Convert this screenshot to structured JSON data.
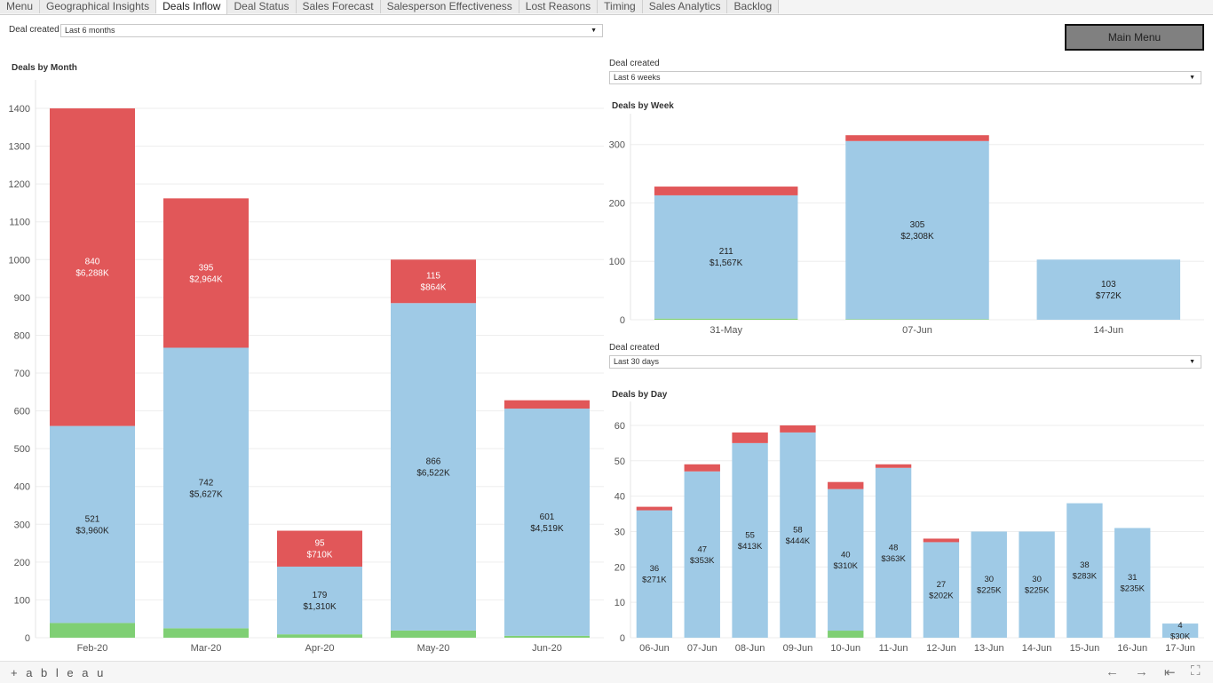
{
  "tabs": [
    "Menu",
    "Geographical Insights",
    "Deals Inflow",
    "Deal Status",
    "Sales Forecast",
    "Salesperson Effectiveness",
    "Lost Reasons",
    "Timing",
    "Sales Analytics",
    "Backlog"
  ],
  "active_tab": "Deals Inflow",
  "main_menu_label": "Main Menu",
  "filters": {
    "month": {
      "label": "Deal created",
      "value": "Last 6 months"
    },
    "week": {
      "label": "Deal created",
      "value": "Last 6 weeks"
    },
    "day": {
      "label": "Deal created",
      "value": "Last 30 days"
    }
  },
  "colors": {
    "open": "#9fcae6",
    "lost": "#e15759",
    "won": "#7fcf74",
    "grid": "#eeeeee",
    "axis": "#555555"
  },
  "footer": {
    "logo": "+ a b l e a u",
    "nav_icons": [
      "arrow-left-icon",
      "arrow-right-icon",
      "first-page-icon",
      "fullscreen-icon"
    ]
  },
  "chart_data": [
    {
      "type": "bar",
      "title": "Deals by Month",
      "stacked": true,
      "categories": [
        "Feb-20",
        "Mar-20",
        "Apr-20",
        "May-20",
        "Jun-20"
      ],
      "yticks": [
        0,
        100,
        200,
        300,
        400,
        500,
        600,
        700,
        800,
        900,
        1000,
        1100,
        1200,
        1300,
        1400
      ],
      "ylim": [
        0,
        1440
      ],
      "series": [
        {
          "key": "won",
          "values": [
            39,
            25,
            9,
            19,
            5
          ]
        },
        {
          "key": "open",
          "values": [
            521,
            742,
            179,
            866,
            601
          ],
          "labels": [
            "521\n$3,960K",
            "742\n$5,627K",
            "179\n$1,310K",
            "866\n$6,522K",
            "601\n$4,519K"
          ]
        },
        {
          "key": "lost",
          "values": [
            840,
            395,
            95,
            115,
            22
          ],
          "labels": [
            "840\n$6,288K",
            "395\n$2,964K",
            "95\n$710K",
            "115\n$864K",
            ""
          ]
        }
      ]
    },
    {
      "type": "bar",
      "title": "Deals by Week",
      "stacked": true,
      "categories": [
        "31-May",
        "07-Jun",
        "14-Jun"
      ],
      "yticks": [
        0,
        100,
        200,
        300
      ],
      "ylim": [
        0,
        330
      ],
      "series": [
        {
          "key": "won",
          "values": [
            2,
            1,
            0
          ]
        },
        {
          "key": "open",
          "values": [
            211,
            305,
            103
          ],
          "labels": [
            "211\n$1,567K",
            "305\n$2,308K",
            "103\n$772K"
          ]
        },
        {
          "key": "lost",
          "values": [
            15,
            10,
            0
          ],
          "labels": [
            "",
            "",
            ""
          ]
        }
      ]
    },
    {
      "type": "bar",
      "title": "Deals by Day",
      "stacked": true,
      "categories": [
        "06-Jun",
        "07-Jun",
        "08-Jun",
        "09-Jun",
        "10-Jun",
        "11-Jun",
        "12-Jun",
        "13-Jun",
        "14-Jun",
        "15-Jun",
        "16-Jun",
        "17-Jun"
      ],
      "yticks": [
        0,
        10,
        20,
        30,
        40,
        50,
        60
      ],
      "ylim": [
        0,
        63
      ],
      "series": [
        {
          "key": "won",
          "values": [
            0,
            0,
            0,
            0,
            2,
            0,
            0,
            0,
            0,
            0,
            0,
            0
          ]
        },
        {
          "key": "open",
          "values": [
            36,
            47,
            55,
            58,
            40,
            48,
            27,
            30,
            30,
            38,
            31,
            4
          ],
          "labels": [
            "36\n$271K",
            "47\n$353K",
            "55\n$413K",
            "58\n$444K",
            "40\n$310K",
            "48\n$363K",
            "27\n$202K",
            "30\n$225K",
            "30\n$225K",
            "38\n$283K",
            "31\n$235K",
            "4\n$30K"
          ]
        },
        {
          "key": "lost",
          "values": [
            1,
            2,
            3,
            2,
            2,
            1,
            1,
            0,
            0,
            0,
            0,
            0
          ],
          "labels": [
            "",
            "",
            "",
            "",
            "",
            "",
            "",
            "",
            "",
            "",
            "",
            ""
          ]
        }
      ]
    }
  ]
}
